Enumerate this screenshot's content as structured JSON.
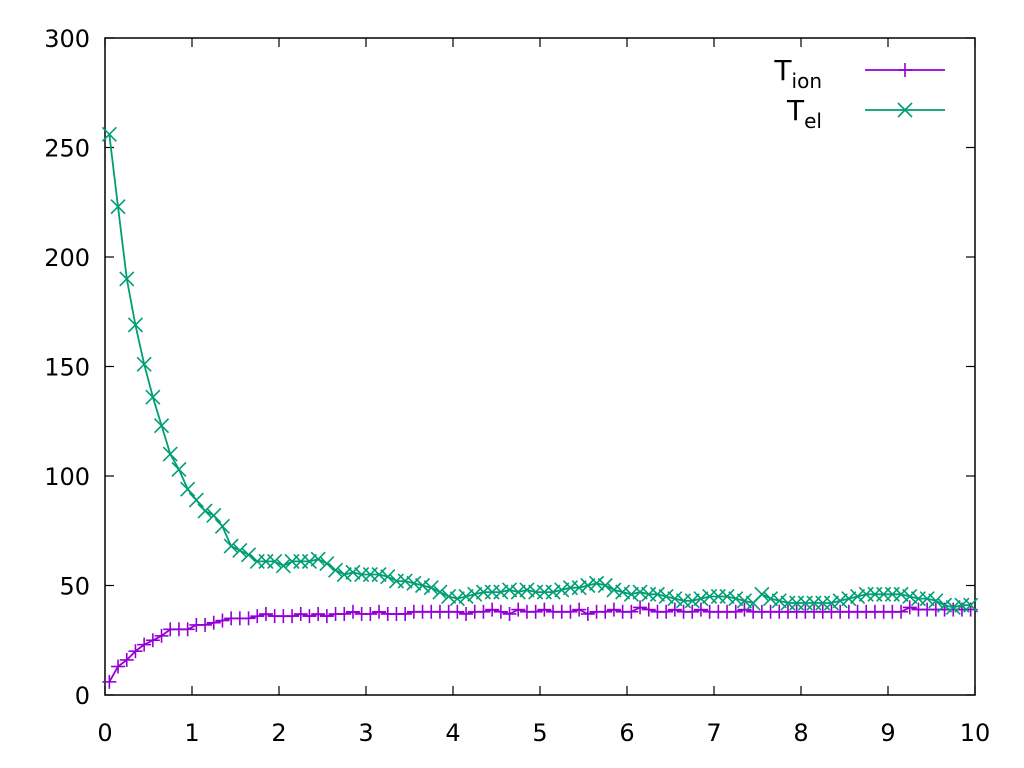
{
  "chart_data": {
    "type": "line",
    "title": "",
    "xlabel": "",
    "ylabel": "",
    "xlim": [
      0,
      10
    ],
    "ylim": [
      0,
      300
    ],
    "x_ticks": [
      "0",
      "1",
      "2",
      "3",
      "4",
      "5",
      "6",
      "7",
      "8",
      "9",
      "10"
    ],
    "y_ticks": [
      "0",
      "50",
      "100",
      "150",
      "200",
      "250",
      "300"
    ],
    "grid": false,
    "legend_position": "top-right",
    "series": [
      {
        "name": "T_ion",
        "label_main": "T",
        "label_sub": "ion",
        "color": "#9400d3",
        "marker": "plus",
        "x": [
          0.05,
          0.15,
          0.25,
          0.35,
          0.45,
          0.55,
          0.65,
          0.75,
          0.85,
          0.95,
          1.05,
          1.15,
          1.25,
          1.35,
          1.45,
          1.55,
          1.65,
          1.75,
          1.85,
          1.95,
          2.05,
          2.15,
          2.25,
          2.35,
          2.45,
          2.55,
          2.65,
          2.75,
          2.85,
          2.95,
          3.05,
          3.15,
          3.25,
          3.35,
          3.45,
          3.55,
          3.65,
          3.75,
          3.85,
          3.95,
          4.05,
          4.15,
          4.25,
          4.35,
          4.45,
          4.55,
          4.65,
          4.75,
          4.85,
          4.95,
          5.05,
          5.15,
          5.25,
          5.35,
          5.45,
          5.55,
          5.65,
          5.75,
          5.85,
          5.95,
          6.05,
          6.15,
          6.25,
          6.35,
          6.45,
          6.55,
          6.65,
          6.75,
          6.85,
          6.95,
          7.05,
          7.15,
          7.25,
          7.35,
          7.45,
          7.55,
          7.65,
          7.75,
          7.85,
          7.95,
          8.05,
          8.15,
          8.25,
          8.35,
          8.45,
          8.55,
          8.65,
          8.75,
          8.85,
          8.95,
          9.05,
          9.15,
          9.25,
          9.35,
          9.45,
          9.55,
          9.65,
          9.75,
          9.85,
          9.95
        ],
        "y": [
          6,
          13,
          16,
          20,
          23,
          25,
          27,
          30,
          30,
          30,
          32,
          32,
          33,
          34,
          35,
          35,
          35,
          36,
          37,
          36,
          36,
          36,
          37,
          36,
          37,
          36,
          37,
          37,
          38,
          37,
          37,
          38,
          37,
          37,
          37,
          38,
          38,
          38,
          38,
          38,
          38,
          37,
          38,
          38,
          39,
          38,
          37,
          39,
          38,
          38,
          39,
          38,
          38,
          38,
          39,
          37,
          38,
          38,
          39,
          38,
          38,
          40,
          39,
          38,
          38,
          39,
          38,
          38,
          39,
          38,
          38,
          38,
          38,
          39,
          38,
          38,
          38,
          38,
          38,
          38,
          38,
          38,
          38,
          38,
          38,
          38,
          38,
          38,
          38,
          38,
          38,
          38,
          40,
          39,
          39,
          39,
          39,
          39,
          39,
          39
        ]
      },
      {
        "name": "T_el",
        "label_main": "T",
        "label_sub": "el",
        "color": "#009e73",
        "marker": "cross",
        "x": [
          0.05,
          0.15,
          0.25,
          0.35,
          0.45,
          0.55,
          0.65,
          0.75,
          0.85,
          0.95,
          1.05,
          1.15,
          1.25,
          1.35,
          1.45,
          1.55,
          1.65,
          1.75,
          1.85,
          1.95,
          2.05,
          2.15,
          2.25,
          2.35,
          2.45,
          2.55,
          2.65,
          2.75,
          2.85,
          2.95,
          3.05,
          3.15,
          3.25,
          3.35,
          3.45,
          3.55,
          3.65,
          3.75,
          3.85,
          3.95,
          4.05,
          4.15,
          4.25,
          4.35,
          4.45,
          4.55,
          4.65,
          4.75,
          4.85,
          4.95,
          5.05,
          5.15,
          5.25,
          5.35,
          5.45,
          5.55,
          5.65,
          5.75,
          5.85,
          5.95,
          6.05,
          6.15,
          6.25,
          6.35,
          6.45,
          6.55,
          6.65,
          6.75,
          6.85,
          6.95,
          7.05,
          7.15,
          7.25,
          7.35,
          7.45,
          7.55,
          7.65,
          7.75,
          7.85,
          7.95,
          8.05,
          8.15,
          8.25,
          8.35,
          8.45,
          8.55,
          8.65,
          8.75,
          8.85,
          8.95,
          9.05,
          9.15,
          9.25,
          9.35,
          9.45,
          9.55,
          9.65,
          9.75,
          9.85,
          9.95
        ],
        "y": [
          256,
          223,
          190,
          169,
          151,
          136,
          123,
          110,
          103,
          94,
          89,
          84,
          82,
          77,
          68,
          66,
          64,
          61,
          61,
          61,
          59,
          61,
          61,
          61,
          62,
          60,
          57,
          55,
          56,
          55,
          55,
          55,
          54,
          52,
          52,
          51,
          50,
          49,
          47,
          45,
          44,
          45,
          46,
          47,
          47,
          47,
          48,
          47,
          48,
          47,
          47,
          47,
          48,
          49,
          49,
          50,
          51,
          50,
          48,
          47,
          46,
          47,
          46,
          46,
          45,
          44,
          43,
          43,
          44,
          45,
          45,
          45,
          44,
          43,
          42,
          46,
          44,
          43,
          42,
          42,
          42,
          42,
          42,
          42,
          43,
          44,
          45,
          46,
          46,
          46,
          46,
          46,
          45,
          44,
          44,
          43,
          41,
          40,
          41,
          41
        ]
      }
    ]
  }
}
